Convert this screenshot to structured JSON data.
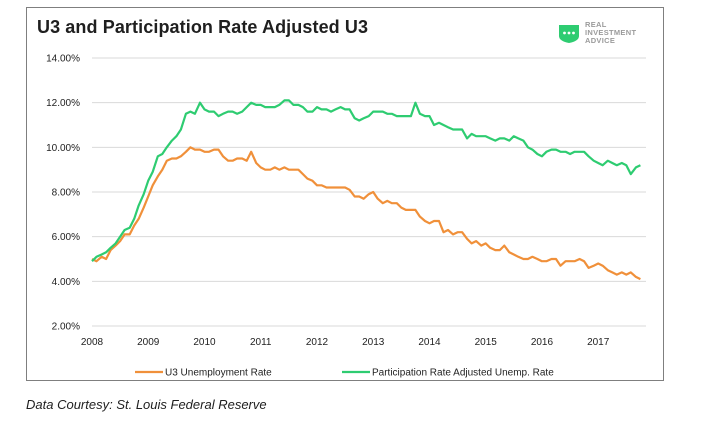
{
  "title": "U3 and Participation Rate Adjusted U3",
  "logo": {
    "lines": [
      "REAL",
      "INVESTMENT",
      "ADVICE"
    ],
    "icon": "logo-badge-icon",
    "color": "#2ecc71"
  },
  "caption": "Data Courtesy: St. Louis Federal Reserve",
  "chart_data": {
    "type": "line",
    "title": "U3 and Participation Rate Adjusted U3",
    "xlabel": "",
    "ylabel": "",
    "xlim": [
      2008,
      2017.85
    ],
    "ylim": [
      2.0,
      14.0
    ],
    "x_ticks": [
      "2008",
      "2009",
      "2010",
      "2011",
      "2012",
      "2013",
      "2014",
      "2015",
      "2016",
      "2017"
    ],
    "y_ticks": [
      "2.00%",
      "4.00%",
      "6.00%",
      "8.00%",
      "10.00%",
      "12.00%",
      "14.00%"
    ],
    "grid": "horizontal",
    "legend_position": "bottom",
    "series": [
      {
        "name": "U3 Unemployment Rate",
        "color": "#f0903a",
        "points": [
          [
            2008.0,
            5.0
          ],
          [
            2008.08,
            4.9
          ],
          [
            2008.17,
            5.1
          ],
          [
            2008.25,
            5.0
          ],
          [
            2008.33,
            5.4
          ],
          [
            2008.42,
            5.6
          ],
          [
            2008.5,
            5.8
          ],
          [
            2008.58,
            6.1
          ],
          [
            2008.67,
            6.1
          ],
          [
            2008.75,
            6.5
          ],
          [
            2008.83,
            6.8
          ],
          [
            2008.92,
            7.3
          ],
          [
            2009.0,
            7.8
          ],
          [
            2009.08,
            8.3
          ],
          [
            2009.17,
            8.7
          ],
          [
            2009.25,
            9.0
          ],
          [
            2009.33,
            9.4
          ],
          [
            2009.42,
            9.5
          ],
          [
            2009.5,
            9.5
          ],
          [
            2009.58,
            9.6
          ],
          [
            2009.67,
            9.8
          ],
          [
            2009.75,
            10.0
          ],
          [
            2009.83,
            9.9
          ],
          [
            2009.92,
            9.9
          ],
          [
            2010.0,
            9.8
          ],
          [
            2010.08,
            9.8
          ],
          [
            2010.17,
            9.9
          ],
          [
            2010.25,
            9.9
          ],
          [
            2010.33,
            9.6
          ],
          [
            2010.42,
            9.4
          ],
          [
            2010.5,
            9.4
          ],
          [
            2010.58,
            9.5
          ],
          [
            2010.67,
            9.5
          ],
          [
            2010.75,
            9.4
          ],
          [
            2010.83,
            9.8
          ],
          [
            2010.92,
            9.3
          ],
          [
            2011.0,
            9.1
          ],
          [
            2011.08,
            9.0
          ],
          [
            2011.17,
            9.0
          ],
          [
            2011.25,
            9.1
          ],
          [
            2011.33,
            9.0
          ],
          [
            2011.42,
            9.1
          ],
          [
            2011.5,
            9.0
          ],
          [
            2011.58,
            9.0
          ],
          [
            2011.67,
            9.0
          ],
          [
            2011.75,
            8.8
          ],
          [
            2011.83,
            8.6
          ],
          [
            2011.92,
            8.5
          ],
          [
            2012.0,
            8.3
          ],
          [
            2012.08,
            8.3
          ],
          [
            2012.17,
            8.2
          ],
          [
            2012.25,
            8.2
          ],
          [
            2012.33,
            8.2
          ],
          [
            2012.42,
            8.2
          ],
          [
            2012.5,
            8.2
          ],
          [
            2012.58,
            8.1
          ],
          [
            2012.67,
            7.8
          ],
          [
            2012.75,
            7.8
          ],
          [
            2012.83,
            7.7
          ],
          [
            2012.92,
            7.9
          ],
          [
            2013.0,
            8.0
          ],
          [
            2013.08,
            7.7
          ],
          [
            2013.17,
            7.5
          ],
          [
            2013.25,
            7.6
          ],
          [
            2013.33,
            7.5
          ],
          [
            2013.42,
            7.5
          ],
          [
            2013.5,
            7.3
          ],
          [
            2013.58,
            7.2
          ],
          [
            2013.67,
            7.2
          ],
          [
            2013.75,
            7.2
          ],
          [
            2013.83,
            6.9
          ],
          [
            2013.92,
            6.7
          ],
          [
            2014.0,
            6.6
          ],
          [
            2014.08,
            6.7
          ],
          [
            2014.17,
            6.7
          ],
          [
            2014.25,
            6.2
          ],
          [
            2014.33,
            6.3
          ],
          [
            2014.42,
            6.1
          ],
          [
            2014.5,
            6.2
          ],
          [
            2014.58,
            6.2
          ],
          [
            2014.67,
            5.9
          ],
          [
            2014.75,
            5.7
          ],
          [
            2014.83,
            5.8
          ],
          [
            2014.92,
            5.6
          ],
          [
            2015.0,
            5.7
          ],
          [
            2015.08,
            5.5
          ],
          [
            2015.17,
            5.4
          ],
          [
            2015.25,
            5.4
          ],
          [
            2015.33,
            5.6
          ],
          [
            2015.42,
            5.3
          ],
          [
            2015.5,
            5.2
          ],
          [
            2015.58,
            5.1
          ],
          [
            2015.67,
            5.0
          ],
          [
            2015.75,
            5.0
          ],
          [
            2015.83,
            5.1
          ],
          [
            2015.92,
            5.0
          ],
          [
            2016.0,
            4.9
          ],
          [
            2016.08,
            4.9
          ],
          [
            2016.17,
            5.0
          ],
          [
            2016.25,
            5.0
          ],
          [
            2016.33,
            4.7
          ],
          [
            2016.42,
            4.9
          ],
          [
            2016.5,
            4.9
          ],
          [
            2016.58,
            4.9
          ],
          [
            2016.67,
            5.0
          ],
          [
            2016.75,
            4.9
          ],
          [
            2016.83,
            4.6
          ],
          [
            2016.92,
            4.7
          ],
          [
            2017.0,
            4.8
          ],
          [
            2017.08,
            4.7
          ],
          [
            2017.17,
            4.5
          ],
          [
            2017.25,
            4.4
          ],
          [
            2017.33,
            4.3
          ],
          [
            2017.42,
            4.4
          ],
          [
            2017.5,
            4.3
          ],
          [
            2017.58,
            4.4
          ],
          [
            2017.67,
            4.2
          ],
          [
            2017.75,
            4.1
          ]
        ]
      },
      {
        "name": "Participation Rate Adjusted Unemp. Rate",
        "color": "#2ecc71",
        "points": [
          [
            2008.0,
            4.9
          ],
          [
            2008.08,
            5.1
          ],
          [
            2008.17,
            5.2
          ],
          [
            2008.25,
            5.3
          ],
          [
            2008.33,
            5.5
          ],
          [
            2008.42,
            5.7
          ],
          [
            2008.5,
            6.0
          ],
          [
            2008.58,
            6.3
          ],
          [
            2008.67,
            6.4
          ],
          [
            2008.75,
            6.8
          ],
          [
            2008.83,
            7.4
          ],
          [
            2008.92,
            7.9
          ],
          [
            2009.0,
            8.5
          ],
          [
            2009.08,
            8.9
          ],
          [
            2009.17,
            9.6
          ],
          [
            2009.25,
            9.7
          ],
          [
            2009.33,
            10.0
          ],
          [
            2009.42,
            10.3
          ],
          [
            2009.5,
            10.5
          ],
          [
            2009.58,
            10.8
          ],
          [
            2009.67,
            11.5
          ],
          [
            2009.75,
            11.6
          ],
          [
            2009.83,
            11.5
          ],
          [
            2009.92,
            12.0
          ],
          [
            2010.0,
            11.7
          ],
          [
            2010.08,
            11.6
          ],
          [
            2010.17,
            11.6
          ],
          [
            2010.25,
            11.4
          ],
          [
            2010.33,
            11.5
          ],
          [
            2010.42,
            11.6
          ],
          [
            2010.5,
            11.6
          ],
          [
            2010.58,
            11.5
          ],
          [
            2010.67,
            11.6
          ],
          [
            2010.75,
            11.8
          ],
          [
            2010.83,
            12.0
          ],
          [
            2010.92,
            11.9
          ],
          [
            2011.0,
            11.9
          ],
          [
            2011.08,
            11.8
          ],
          [
            2011.17,
            11.8
          ],
          [
            2011.25,
            11.8
          ],
          [
            2011.33,
            11.9
          ],
          [
            2011.42,
            12.1
          ],
          [
            2011.5,
            12.1
          ],
          [
            2011.58,
            11.9
          ],
          [
            2011.67,
            11.9
          ],
          [
            2011.75,
            11.8
          ],
          [
            2011.83,
            11.6
          ],
          [
            2011.92,
            11.6
          ],
          [
            2012.0,
            11.8
          ],
          [
            2012.08,
            11.7
          ],
          [
            2012.17,
            11.7
          ],
          [
            2012.25,
            11.6
          ],
          [
            2012.33,
            11.7
          ],
          [
            2012.42,
            11.8
          ],
          [
            2012.5,
            11.7
          ],
          [
            2012.58,
            11.7
          ],
          [
            2012.67,
            11.3
          ],
          [
            2012.75,
            11.2
          ],
          [
            2012.83,
            11.3
          ],
          [
            2012.92,
            11.4
          ],
          [
            2013.0,
            11.6
          ],
          [
            2013.08,
            11.6
          ],
          [
            2013.17,
            11.6
          ],
          [
            2013.25,
            11.5
          ],
          [
            2013.33,
            11.5
          ],
          [
            2013.42,
            11.4
          ],
          [
            2013.5,
            11.4
          ],
          [
            2013.58,
            11.4
          ],
          [
            2013.67,
            11.4
          ],
          [
            2013.75,
            12.0
          ],
          [
            2013.83,
            11.5
          ],
          [
            2013.92,
            11.4
          ],
          [
            2014.0,
            11.4
          ],
          [
            2014.08,
            11.0
          ],
          [
            2014.17,
            11.1
          ],
          [
            2014.25,
            11.0
          ],
          [
            2014.33,
            10.9
          ],
          [
            2014.42,
            10.8
          ],
          [
            2014.5,
            10.8
          ],
          [
            2014.58,
            10.8
          ],
          [
            2014.67,
            10.4
          ],
          [
            2014.75,
            10.6
          ],
          [
            2014.83,
            10.5
          ],
          [
            2014.92,
            10.5
          ],
          [
            2015.0,
            10.5
          ],
          [
            2015.08,
            10.4
          ],
          [
            2015.17,
            10.3
          ],
          [
            2015.25,
            10.4
          ],
          [
            2015.33,
            10.4
          ],
          [
            2015.42,
            10.3
          ],
          [
            2015.5,
            10.5
          ],
          [
            2015.58,
            10.4
          ],
          [
            2015.67,
            10.3
          ],
          [
            2015.75,
            10.0
          ],
          [
            2015.83,
            9.9
          ],
          [
            2015.92,
            9.7
          ],
          [
            2016.0,
            9.6
          ],
          [
            2016.08,
            9.8
          ],
          [
            2016.17,
            9.9
          ],
          [
            2016.25,
            9.9
          ],
          [
            2016.33,
            9.8
          ],
          [
            2016.42,
            9.8
          ],
          [
            2016.5,
            9.7
          ],
          [
            2016.58,
            9.8
          ],
          [
            2016.67,
            9.8
          ],
          [
            2016.75,
            9.8
          ],
          [
            2016.83,
            9.6
          ],
          [
            2016.92,
            9.4
          ],
          [
            2017.0,
            9.3
          ],
          [
            2017.08,
            9.2
          ],
          [
            2017.17,
            9.4
          ],
          [
            2017.25,
            9.3
          ],
          [
            2017.33,
            9.2
          ],
          [
            2017.42,
            9.3
          ],
          [
            2017.5,
            9.2
          ],
          [
            2017.58,
            8.8
          ],
          [
            2017.67,
            9.1
          ],
          [
            2017.75,
            9.2
          ]
        ]
      }
    ]
  }
}
